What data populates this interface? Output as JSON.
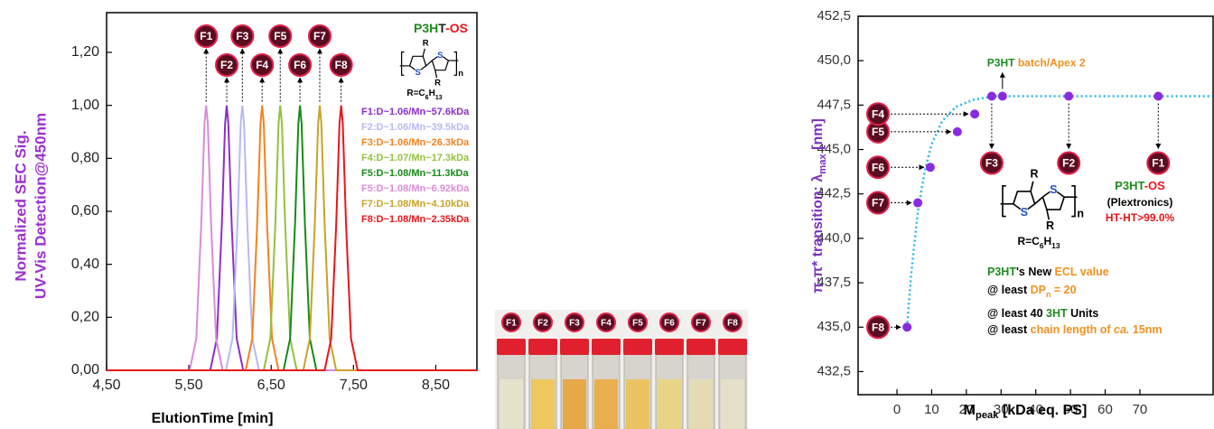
{
  "chart_data": [
    {
      "type": "line",
      "title": [
        {
          "text": "P3H",
          "color": "#1e8c1e"
        },
        {
          "text": "T",
          "color": "#222222"
        },
        {
          "text": "-OS",
          "color": "#e8151b"
        }
      ],
      "y_label": [
        "Normalized SEC Sig.",
        "UV-Vis Detection@450nm"
      ],
      "x_label": "ElutionTime [min]",
      "xlim": [
        4.5,
        9.0
      ],
      "xticks": [
        {
          "value": 4.5,
          "label": "4,50"
        },
        {
          "value": 5.5,
          "label": "5,50"
        },
        {
          "value": 6.5,
          "label": "6,50"
        },
        {
          "value": 7.5,
          "label": "7,50"
        },
        {
          "value": 8.5,
          "label": "8,50"
        }
      ],
      "ylim": [
        0,
        1.35
      ],
      "yticks": [
        {
          "value": 0,
          "label": "0,00"
        },
        {
          "value": 0.2,
          "label": "0,20"
        },
        {
          "value": 0.4,
          "label": "0,40"
        },
        {
          "value": 0.6,
          "label": "0,60"
        },
        {
          "value": 0.8,
          "label": "0,80"
        },
        {
          "value": 1.0,
          "label": "1,00"
        },
        {
          "value": 1.2,
          "label": "1,20"
        }
      ],
      "structure": {
        "r": "R",
        "s": "S",
        "n": "n",
        "substituent": [
          {
            "text": "R=C"
          },
          {
            "text": "6",
            "sub": true
          },
          {
            "text": "H"
          },
          {
            "text": "13",
            "sub": true
          }
        ]
      },
      "series": [
        {
          "name": "F1:D~1.06/Mn~57.6kDa",
          "label": "F2",
          "color": "#8b2fc9",
          "x": [
            4.5,
            5.76,
            5.84,
            5.9,
            5.94,
            5.96,
            5.98,
            6.02,
            6.08,
            6.16,
            9.0
          ],
          "values": [
            0,
            0,
            0.12,
            0.55,
            0.93,
            1,
            0.93,
            0.55,
            0.12,
            0,
            0
          ]
        },
        {
          "name": "F2:D~1.06/Mn~39.5kDa",
          "label": "F3",
          "color": "#b7b9f2",
          "x": [
            4.5,
            5.95,
            6.03,
            6.09,
            6.13,
            6.15,
            6.17,
            6.21,
            6.27,
            6.35,
            9.0
          ],
          "values": [
            0,
            0,
            0.12,
            0.55,
            0.93,
            1,
            0.93,
            0.55,
            0.12,
            0,
            0
          ]
        },
        {
          "name": "F3:D~1.06/Mn~26.3kDa",
          "label": "F4",
          "color": "#f4821f",
          "x": [
            4.5,
            6.19,
            6.27,
            6.33,
            6.37,
            6.39,
            6.41,
            6.45,
            6.51,
            6.59,
            9.0
          ],
          "values": [
            0,
            0,
            0.12,
            0.55,
            0.93,
            1,
            0.93,
            0.55,
            0.12,
            0,
            0
          ]
        },
        {
          "name": "F4:D~1.07/Mn~17.3kDa",
          "label": "F5",
          "color": "#93c13e",
          "x": [
            4.5,
            6.41,
            6.49,
            6.55,
            6.59,
            6.61,
            6.63,
            6.67,
            6.73,
            6.81,
            9.0
          ],
          "values": [
            0,
            0,
            0.12,
            0.55,
            0.93,
            1,
            0.93,
            0.55,
            0.12,
            0,
            0
          ]
        },
        {
          "name": "F5:D~1.08/Mn~11.3kDa",
          "label": "F6",
          "color": "#178a17",
          "x": [
            4.5,
            6.65,
            6.73,
            6.79,
            6.83,
            6.85,
            6.87,
            6.91,
            6.97,
            7.05,
            9.0
          ],
          "values": [
            0,
            0,
            0.12,
            0.55,
            0.93,
            1,
            0.93,
            0.55,
            0.12,
            0,
            0
          ]
        },
        {
          "name": "F5:D~1.08/Mn~6.92kDa",
          "label": "F1",
          "color": "#d98bd9",
          "x": [
            4.5,
            5.51,
            5.59,
            5.65,
            5.69,
            5.71,
            5.73,
            5.77,
            5.83,
            5.91,
            9.0
          ],
          "values": [
            0,
            0,
            0.12,
            0.55,
            0.93,
            1,
            0.93,
            0.55,
            0.12,
            0,
            0
          ]
        },
        {
          "name": "F7:D~1.08/Mn~4.10kDa",
          "label": "F7",
          "color": "#c9a227",
          "x": [
            4.5,
            6.89,
            6.97,
            7.03,
            7.07,
            7.09,
            7.11,
            7.15,
            7.21,
            7.29,
            9.0
          ],
          "values": [
            0,
            0,
            0.12,
            0.55,
            0.93,
            1,
            0.93,
            0.55,
            0.12,
            0,
            0
          ]
        },
        {
          "name": "F8:D~1.08/Mn~2.35kDa",
          "label": "F8",
          "color": "#e8151b",
          "x": [
            4.5,
            7.15,
            7.23,
            7.29,
            7.33,
            7.35,
            7.37,
            7.41,
            7.47,
            7.55,
            9.0
          ],
          "values": [
            0,
            0,
            0.12,
            0.55,
            0.93,
            1,
            0.93,
            0.55,
            0.12,
            0,
            0
          ]
        }
      ]
    },
    {
      "type": "scatter",
      "y_label": [
        {
          "text": "π-π* transition: λ"
        },
        {
          "text": "max",
          "sub": true
        },
        {
          "text": " [nm]"
        }
      ],
      "x_label": [
        {
          "text": "M"
        },
        {
          "text": "peak",
          "sub": true
        },
        {
          "text": " [kDa eq. PS]"
        }
      ],
      "xlim": [
        -11.2,
        91.1
      ],
      "xticks": [
        0,
        10,
        20,
        30,
        40,
        50,
        60,
        70
      ],
      "ylim": [
        431.2,
        452.5
      ],
      "yticks": [
        {
          "value": 432.5,
          "label": "432,5"
        },
        {
          "value": 435,
          "label": "435,0"
        },
        {
          "value": 437.5,
          "label": "437,5"
        },
        {
          "value": 440,
          "label": "440,0"
        },
        {
          "value": 442.5,
          "label": "442,5"
        },
        {
          "value": 445,
          "label": "445,0"
        },
        {
          "value": 447.5,
          "label": "447,5"
        },
        {
          "value": 450,
          "label": "450,0"
        },
        {
          "value": 452.5,
          "label": "452,5"
        }
      ],
      "series": [
        {
          "color": "#29b6e8",
          "line": "dashed",
          "x": [
            2.9,
            4,
            6,
            8,
            10,
            13,
            17,
            22,
            28,
            40,
            91
          ],
          "values": [
            435,
            437.8,
            441.5,
            443.8,
            445.3,
            446.6,
            447.4,
            447.8,
            448,
            448,
            448
          ]
        },
        {
          "color": "#8a2be2",
          "x": [
            2.9,
            6.0,
            9.6,
            17.4,
            22.4,
            27.3,
            30.4,
            49.5,
            75.3
          ],
          "values": [
            435,
            442,
            444,
            446,
            447,
            448,
            448,
            448,
            448
          ],
          "labels": [
            "F8",
            "F7",
            "F6",
            "F5",
            "F4",
            "F3",
            null,
            "F2",
            "F1"
          ]
        }
      ],
      "batch": [
        {
          "text": "P3HT",
          "color": "#1e8c1e"
        },
        {
          "text": " batch/Apex 2",
          "color": "#f0901e"
        }
      ],
      "structure": {
        "r": "R",
        "s": "S",
        "n": "n",
        "substituent": [
          {
            "text": "R=C"
          },
          {
            "text": "6",
            "sub": true
          },
          {
            "text": "H"
          },
          {
            "text": "13",
            "sub": true
          }
        ]
      },
      "box_title": [
        {
          "text": "P3HT",
          "color": "#1e8c1e"
        },
        {
          "text": "-OS",
          "color": "#e8151b"
        }
      ],
      "maker": "(Plextronics)",
      "regioregularity": "HT-HT>99.0%",
      "notes": [
        [
          {
            "text": "P3HT",
            "color": "#1e8c1e"
          },
          {
            "text": "'s New "
          },
          {
            "text": "ECL value",
            "color": "#f0901e"
          }
        ],
        [
          {
            "text": "@ least "
          },
          {
            "text": "DP",
            "color": "#f0901e"
          },
          {
            "text": "n",
            "sub": true,
            "color": "#f0901e"
          },
          {
            "text": " = 20",
            "color": "#f0901e"
          }
        ],
        [
          {
            "text": "@ least 40 "
          },
          {
            "text": "3HT",
            "color": "#1e8c1e"
          },
          {
            "text": " Units"
          }
        ],
        [
          {
            "text": "@ least "
          },
          {
            "text": "chain length of ",
            "color": "#f0901e"
          },
          {
            "text": "ca.",
            "color": "#f0901e",
            "italic": true
          },
          {
            "text": " 15nm",
            "color": "#f0901e"
          }
        ]
      ]
    }
  ],
  "photo": {
    "labels": [
      "F1",
      "F2",
      "F3",
      "F4",
      "F5",
      "F6",
      "F7",
      "F8"
    ]
  }
}
